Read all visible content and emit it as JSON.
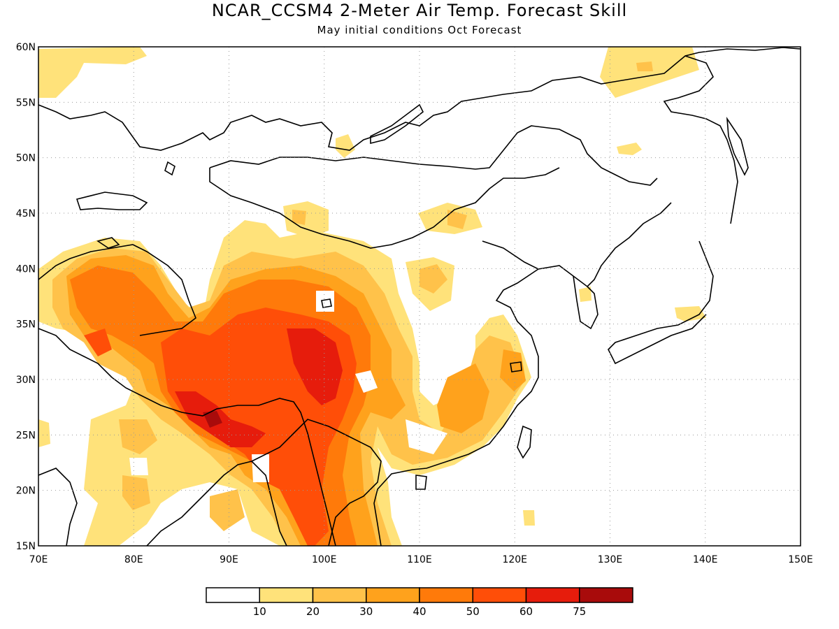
{
  "title": "NCAR_CCSM4 2-Meter Air Temp. Forecast Skill",
  "subtitle": "May initial conditions  Oct Forecast",
  "map": {
    "lon_range": [
      70,
      150
    ],
    "lat_range": [
      15,
      60
    ],
    "lon_ticks": [
      "70E",
      "80E",
      "90E",
      "100E",
      "110E",
      "120E",
      "130E",
      "140E",
      "150E"
    ],
    "lat_ticks": [
      "15N",
      "20N",
      "25N",
      "30N",
      "35N",
      "40N",
      "45N",
      "50N",
      "55N",
      "60N"
    ],
    "grid": "dotted"
  },
  "colorbar": {
    "labels": [
      "10",
      "20",
      "30",
      "40",
      "50",
      "60",
      "75"
    ],
    "colors": [
      "#ffffff",
      "#ffe27a",
      "#ffc24a",
      "#ffa21c",
      "#ff7a0a",
      "#ff4e08",
      "#e61c0c",
      "#a80b0b"
    ]
  }
}
